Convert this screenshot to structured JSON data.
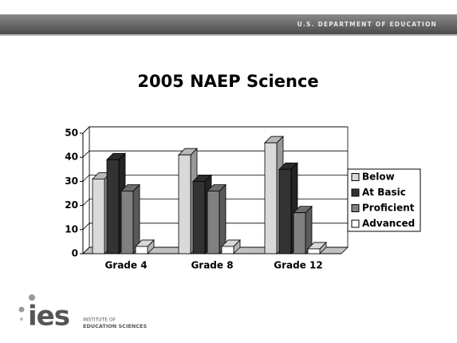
{
  "header": {
    "agency": "U.S. DEPARTMENT OF EDUCATION"
  },
  "footer": {
    "logo": "ies",
    "institute_line1": "INSTITUTE OF",
    "institute_line2": "EDUCATION SCIENCES"
  },
  "chart_data": {
    "type": "bar",
    "title": "2005 NAEP Science",
    "categories": [
      "Grade 4",
      "Grade 8",
      "Grade 12"
    ],
    "series": [
      {
        "name": "Below",
        "color": "#d9d9d9",
        "values": [
          31,
          41,
          46
        ]
      },
      {
        "name": "At Basic",
        "color": "#333333",
        "values": [
          39,
          30,
          35
        ]
      },
      {
        "name": "Proficient",
        "color": "#808080",
        "values": [
          26,
          26,
          17
        ]
      },
      {
        "name": "Advanced",
        "color": "#ffffff",
        "values": [
          3,
          3,
          2
        ]
      }
    ],
    "ylim": [
      0,
      50
    ],
    "yticks": [
      0,
      10,
      20,
      30,
      40,
      50
    ],
    "grid": true,
    "legend": "right"
  }
}
